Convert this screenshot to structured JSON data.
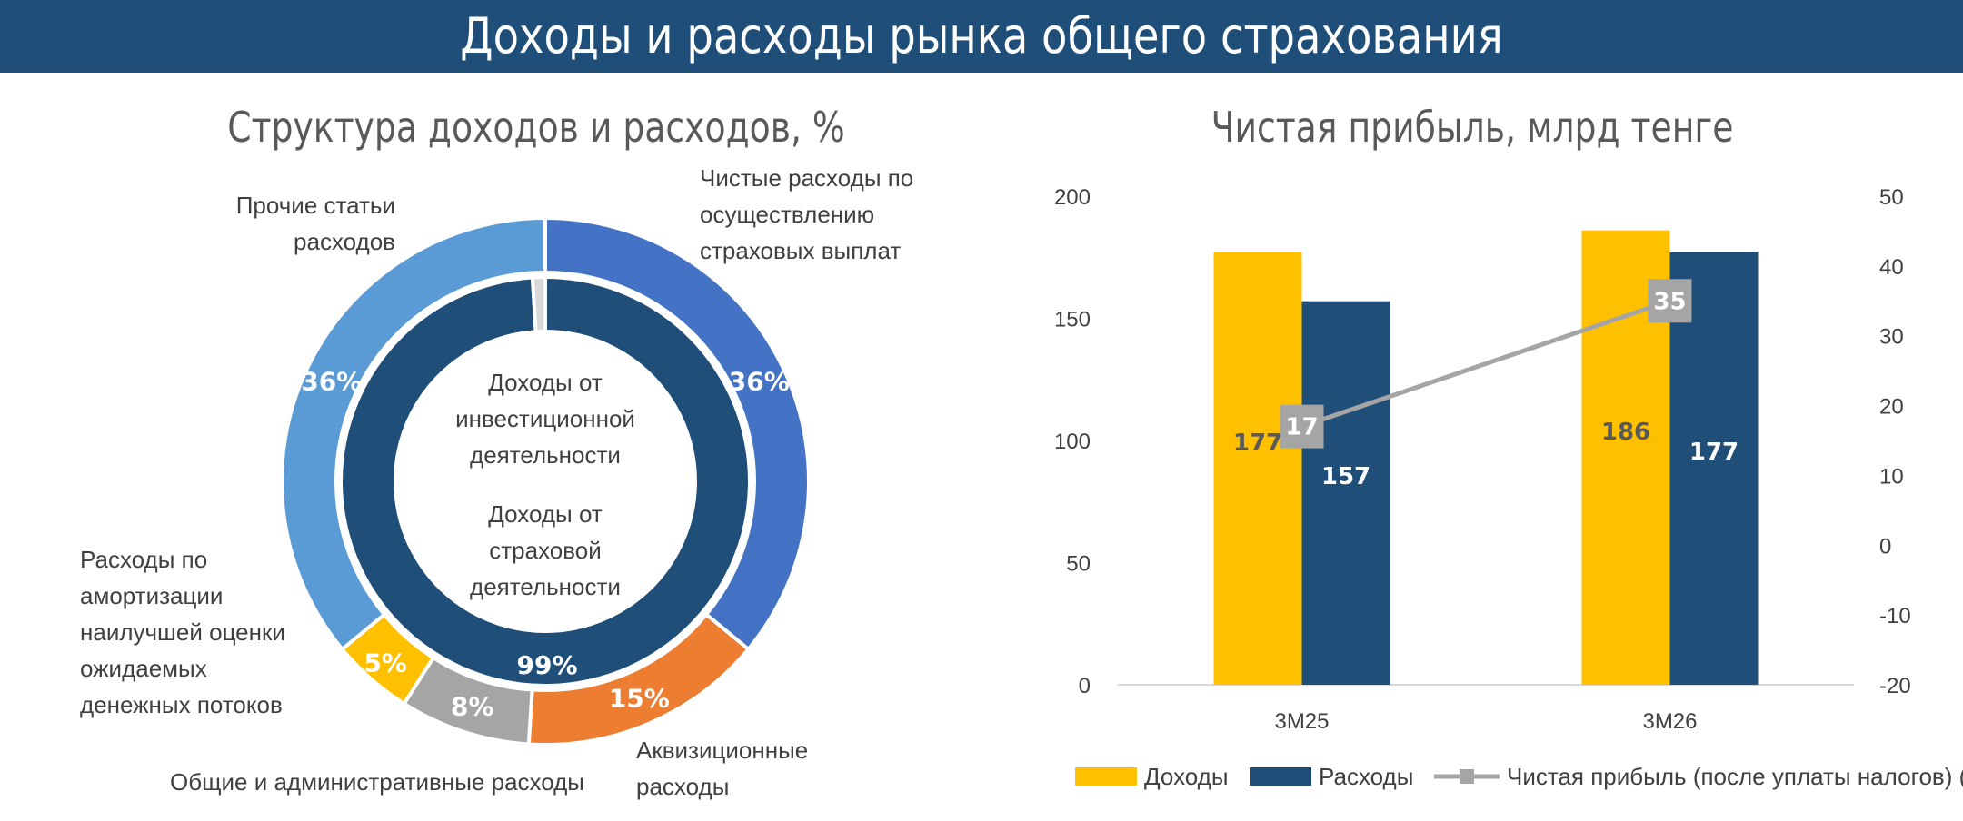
{
  "header": {
    "title": "Доходы и расходы рынка общего страхования"
  },
  "colors": {
    "header_bg": "#1f4e79",
    "dohody": "#ffc000",
    "rashody": "#1f4e79",
    "pribyl": "#a5a5a5"
  },
  "chart_data": [
    {
      "type": "pie",
      "title": "Структура доходов и расходов, %",
      "inner_ring": {
        "slices": [
          {
            "label": "Доходы от страховой деятельности",
            "value": 99,
            "value_label": "99%",
            "color": "#1f4e79"
          },
          {
            "label": "Доходы от инвестиционной деятельности",
            "value": 1,
            "value_label": "1%",
            "color": "#d9d9d9"
          }
        ]
      },
      "outer_ring": {
        "slices": [
          {
            "label": "Чистые расходы по осуществлению страховых выплат",
            "value": 36,
            "value_label": "36%",
            "color": "#4472c4"
          },
          {
            "label": "Аквизиционные расходы",
            "value": 15,
            "value_label": "15%",
            "color": "#ed7d31"
          },
          {
            "label": "Общие и административные расходы",
            "value": 8,
            "value_label": "8%",
            "color": "#a5a5a5"
          },
          {
            "label": "Расходы по амортизации наилучшей оценки ожидаемых денежных потоков",
            "value": 5,
            "value_label": "5%",
            "color": "#ffc000"
          },
          {
            "label": "Прочие статьи расходов",
            "value": 36,
            "value_label": "36%",
            "color": "#5b9bd5"
          }
        ]
      }
    },
    {
      "type": "bar",
      "title": "Чистая прибыль, млрд тенге",
      "categories": [
        "3М25",
        "3М26"
      ],
      "series": [
        {
          "name": "Доходы",
          "type": "bar",
          "axis": "left",
          "values": [
            177,
            186
          ],
          "color": "#ffc000"
        },
        {
          "name": "Расходы",
          "type": "bar",
          "axis": "left",
          "values": [
            157,
            177
          ],
          "color": "#1f4e79"
        },
        {
          "name": "Чистая прибыль (после уплаты налогов) (R)",
          "type": "line",
          "axis": "right",
          "values": [
            17,
            35
          ],
          "color": "#a5a5a5"
        }
      ],
      "ylim_left": [
        0,
        200
      ],
      "yticks_left": [
        0,
        50,
        100,
        150,
        200
      ],
      "ylim_right": [
        -20,
        50
      ],
      "yticks_right": [
        -20,
        -10,
        0,
        10,
        20,
        30,
        40,
        50
      ],
      "legend": "bottom",
      "grid": false
    }
  ]
}
